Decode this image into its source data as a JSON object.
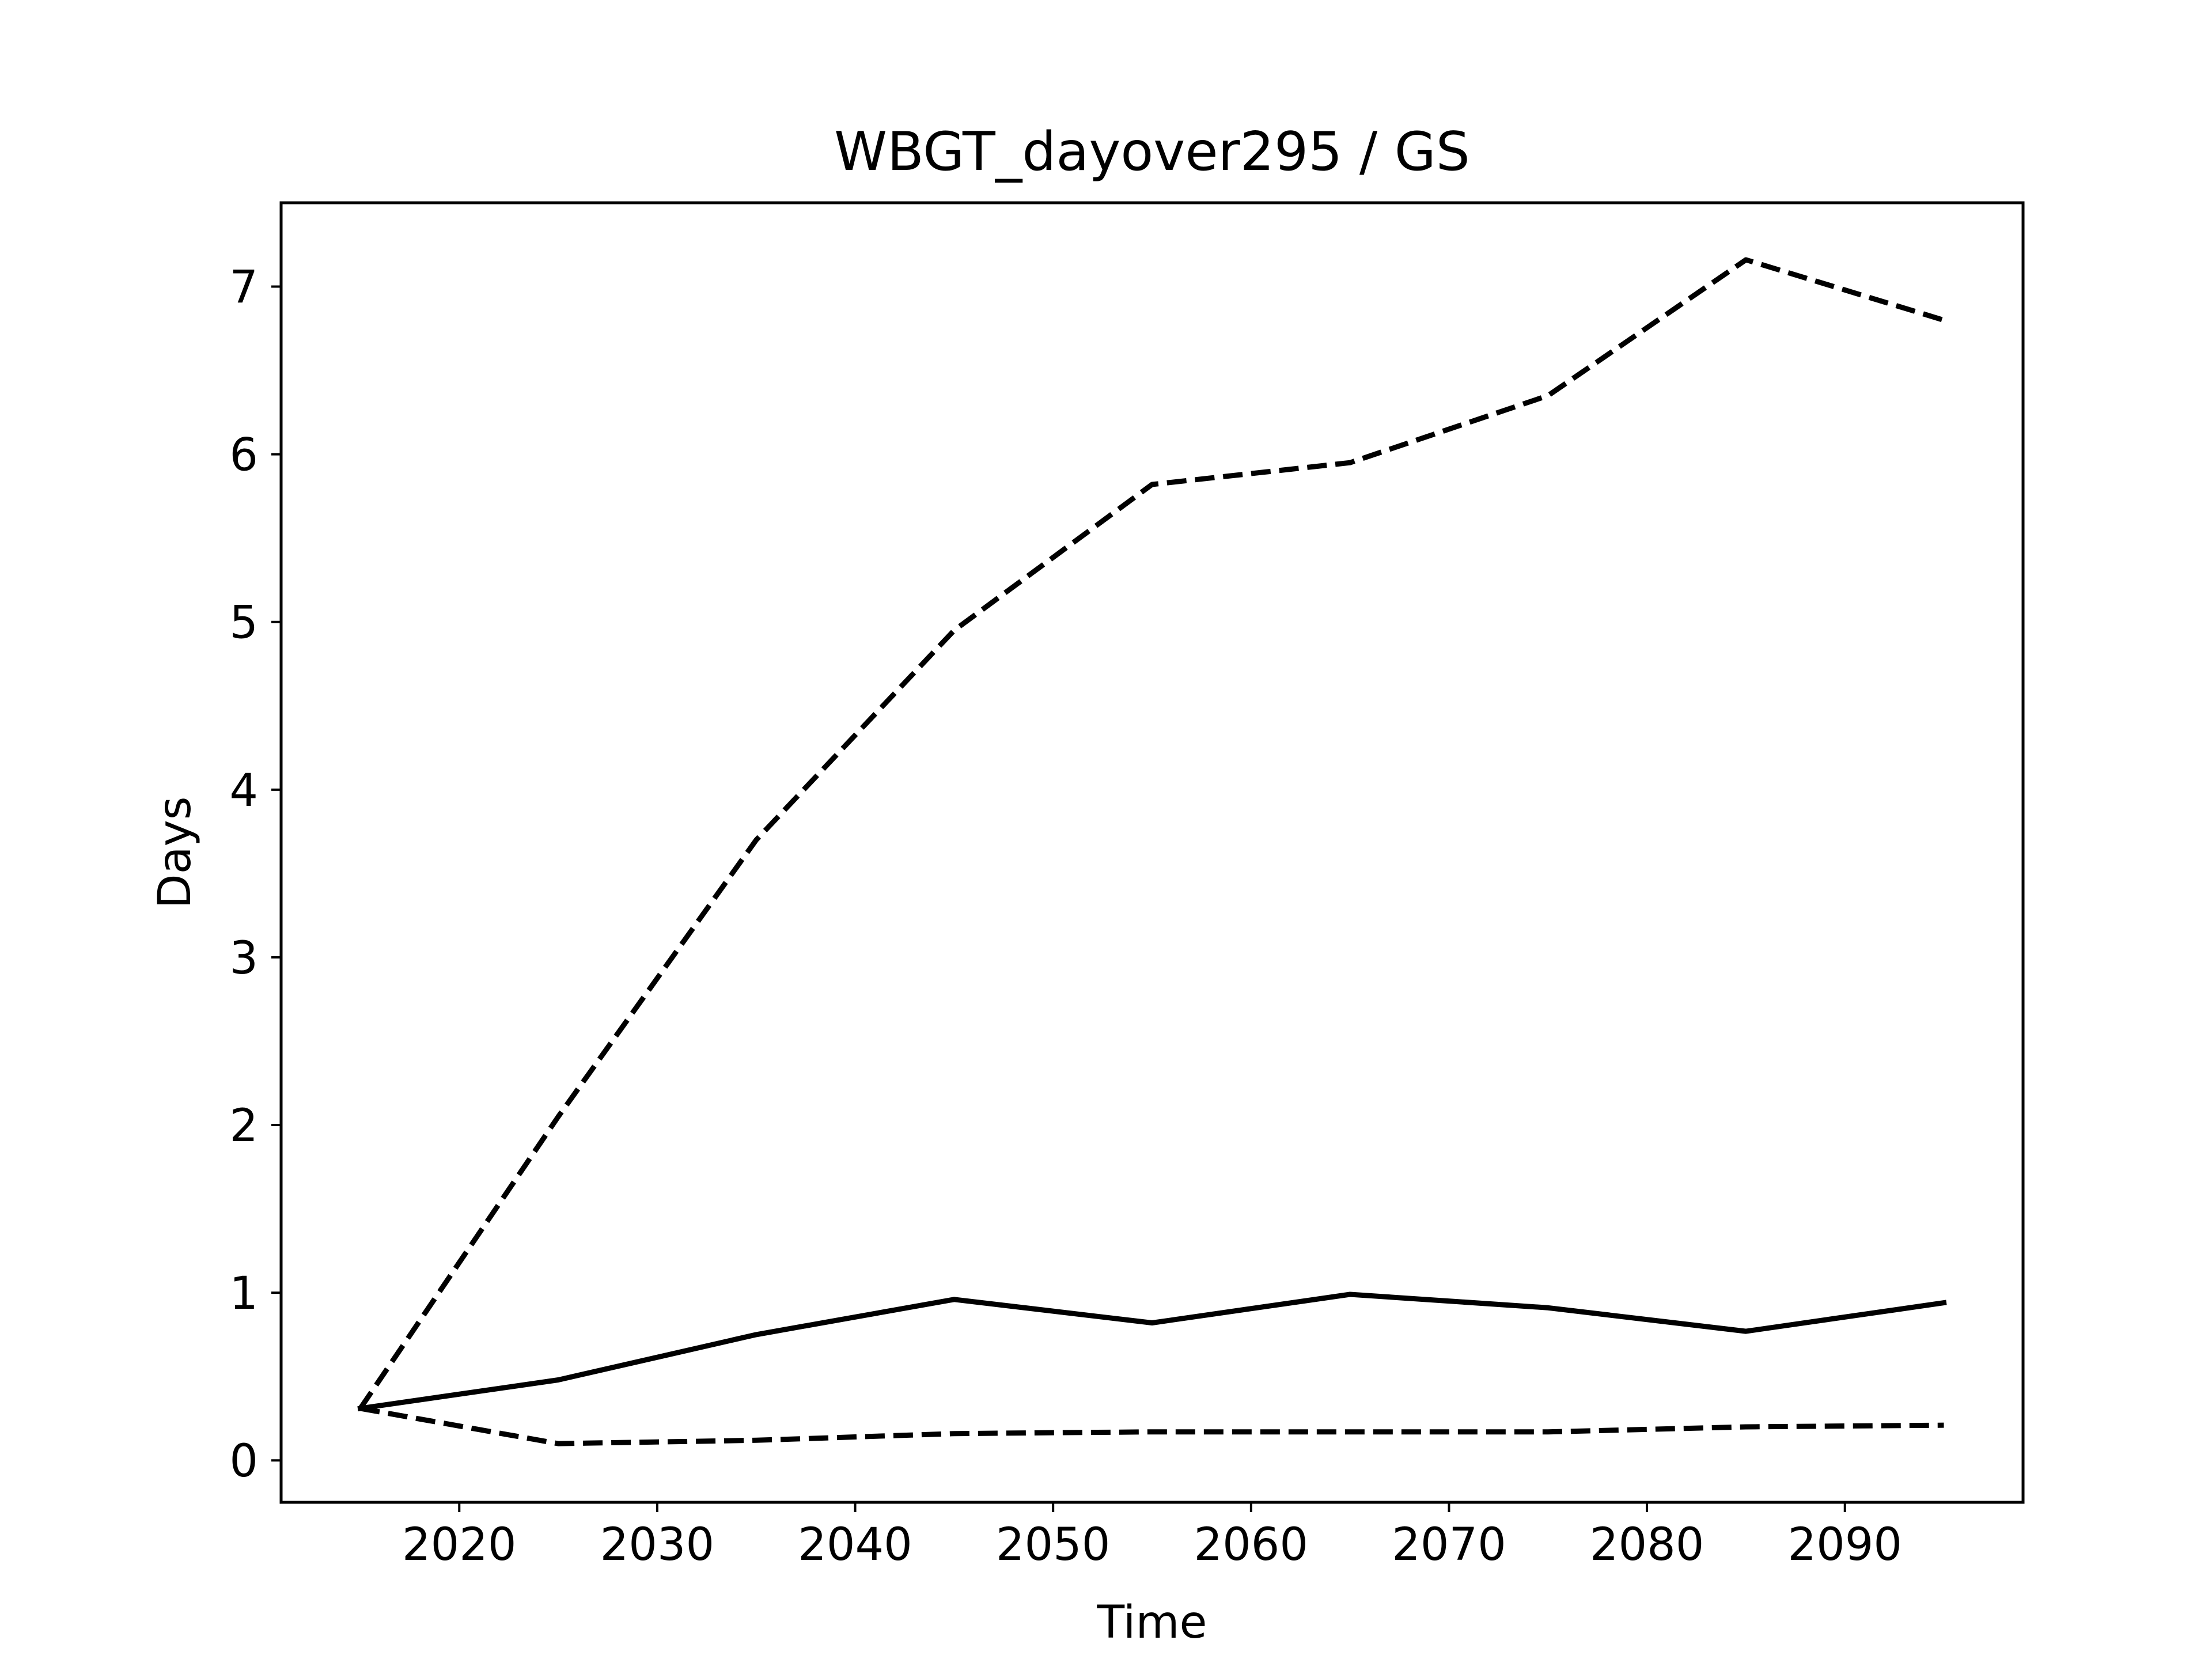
{
  "chart_data": {
    "type": "line",
    "title": "WBGT_dayover295 / GS",
    "xlabel": "Time",
    "ylabel": "Days",
    "xlim": [
      2011,
      2099
    ],
    "ylim": [
      -0.25,
      7.5
    ],
    "xticks": [
      2020,
      2030,
      2040,
      2050,
      2060,
      2070,
      2080,
      2090
    ],
    "yticks": [
      0,
      1,
      2,
      3,
      4,
      5,
      6,
      7
    ],
    "grid": false,
    "legend": "none",
    "x": [
      2015,
      2025,
      2035,
      2045,
      2055,
      2065,
      2075,
      2085,
      2095
    ],
    "series": [
      {
        "style": "solid",
        "color": "#000000",
        "values": [
          0.31,
          0.48,
          0.75,
          0.96,
          0.82,
          0.99,
          0.91,
          0.77,
          0.94
        ]
      },
      {
        "style": "dashed",
        "color": "#000000",
        "values": [
          0.31,
          2.05,
          3.7,
          4.95,
          5.82,
          5.95,
          6.35,
          7.16,
          6.8
        ]
      },
      {
        "style": "dashed",
        "color": "#000000",
        "values": [
          0.31,
          0.1,
          0.12,
          0.16,
          0.17,
          0.17,
          0.17,
          0.2,
          0.21
        ]
      }
    ]
  }
}
